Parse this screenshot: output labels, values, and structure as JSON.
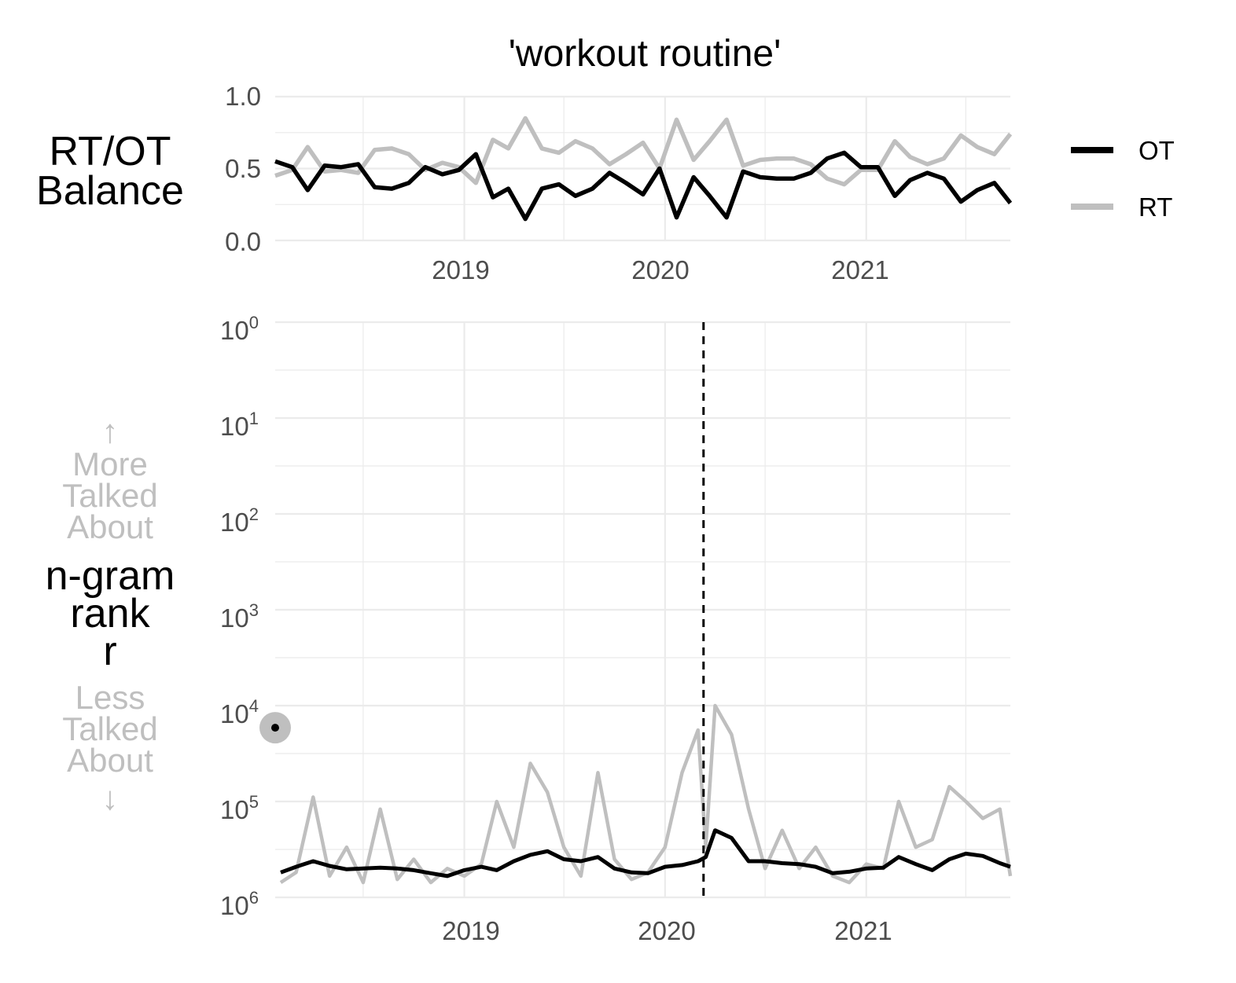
{
  "title": "'workout routine'",
  "balance_panel": {
    "ylabel_lines": [
      "RT/OT",
      "Balance"
    ],
    "yticks": [
      "0.0",
      "0.5",
      "1.0"
    ],
    "xticks": [
      "2019",
      "2020",
      "2021"
    ]
  },
  "rank_panel": {
    "ylabel_lines": [
      "n-gram",
      "rank",
      "r"
    ],
    "more_lines": [
      "↑",
      "More",
      "Talked",
      "About"
    ],
    "less_lines": [
      "Less",
      "Talked",
      "About",
      "↓"
    ],
    "yticks": [
      {
        "base": "10",
        "exp": "0"
      },
      {
        "base": "10",
        "exp": "1"
      },
      {
        "base": "10",
        "exp": "2"
      },
      {
        "base": "10",
        "exp": "3"
      },
      {
        "base": "10",
        "exp": "4"
      },
      {
        "base": "10",
        "exp": "5"
      },
      {
        "base": "10",
        "exp": "6"
      }
    ],
    "xticks": [
      "2019",
      "2020",
      "2021"
    ]
  },
  "legend": {
    "items": [
      {
        "label": "OT",
        "color": "#000000"
      },
      {
        "label": "RT",
        "color": "#bfbfbf"
      }
    ]
  },
  "chart_data": [
    {
      "type": "line",
      "title": "'workout routine'",
      "ylabel": "RT/OT Balance",
      "ylim": [
        0,
        1
      ],
      "xlim": [
        "2018-01-22",
        "2021-09-20"
      ],
      "x": [
        "2018-01-22",
        "2018-02-22",
        "2018-03-22",
        "2018-04-22",
        "2018-05-22",
        "2018-06-22",
        "2018-07-22",
        "2018-08-22",
        "2018-09-22",
        "2018-10-22",
        "2018-11-22",
        "2018-12-22",
        "2019-01-22",
        "2019-02-22",
        "2019-03-22",
        "2019-04-22",
        "2019-05-22",
        "2019-06-22",
        "2019-07-22",
        "2019-08-22",
        "2019-09-22",
        "2019-10-22",
        "2019-11-22",
        "2019-12-22",
        "2020-01-22",
        "2020-02-22",
        "2020-03-22",
        "2020-04-22",
        "2020-05-22",
        "2020-06-22",
        "2020-07-22",
        "2020-08-22",
        "2020-09-22",
        "2020-10-22",
        "2020-11-22",
        "2020-12-22",
        "2021-01-22",
        "2021-02-22",
        "2021-03-22",
        "2021-04-22",
        "2021-05-22",
        "2021-06-22",
        "2021-07-22",
        "2021-08-22",
        "2021-09-20"
      ],
      "series": [
        {
          "name": "OT",
          "color": "#000000",
          "values": [
            0.55,
            0.51,
            0.35,
            0.52,
            0.51,
            0.53,
            0.37,
            0.36,
            0.4,
            0.51,
            0.46,
            0.49,
            0.6,
            0.3,
            0.36,
            0.15,
            0.36,
            0.39,
            0.31,
            0.36,
            0.47,
            0.4,
            0.32,
            0.5,
            0.16,
            0.44,
            0.31,
            0.16,
            0.48,
            0.44,
            0.43,
            0.43,
            0.47,
            0.57,
            0.61,
            0.51,
            0.51,
            0.31,
            0.42,
            0.47,
            0.43,
            0.27,
            0.35,
            0.4,
            0.26
          ]
        },
        {
          "name": "RT",
          "color": "#bfbfbf",
          "values": [
            0.45,
            0.49,
            0.65,
            0.48,
            0.49,
            0.47,
            0.63,
            0.64,
            0.6,
            0.49,
            0.54,
            0.51,
            0.4,
            0.7,
            0.64,
            0.85,
            0.64,
            0.61,
            0.69,
            0.64,
            0.53,
            0.6,
            0.68,
            0.5,
            0.84,
            0.56,
            0.69,
            0.84,
            0.52,
            0.56,
            0.57,
            0.57,
            0.53,
            0.43,
            0.39,
            0.49,
            0.49,
            0.69,
            0.58,
            0.53,
            0.57,
            0.73,
            0.65,
            0.6,
            0.74
          ]
        }
      ]
    },
    {
      "type": "line",
      "ylabel": "n-gram rank r",
      "yscale": "log (inverted)",
      "ylim": [
        1,
        1000000
      ],
      "xlim": [
        "2018-01-22",
        "2021-09-20"
      ],
      "event_line": "2020-03-11",
      "point": {
        "x": "2018-01-22",
        "y": 17000
      },
      "x": [
        "2018-02-01",
        "2018-03-01",
        "2018-04-01",
        "2018-05-01",
        "2018-06-01",
        "2018-07-01",
        "2018-08-01",
        "2018-09-01",
        "2018-10-01",
        "2018-11-01",
        "2018-12-01",
        "2019-01-01",
        "2019-02-01",
        "2019-03-01",
        "2019-04-01",
        "2019-05-01",
        "2019-06-01",
        "2019-07-01",
        "2019-08-01",
        "2019-09-01",
        "2019-10-01",
        "2019-11-01",
        "2019-12-01",
        "2020-01-01",
        "2020-02-01",
        "2020-03-01",
        "2020-03-15",
        "2020-04-01",
        "2020-05-01",
        "2020-06-01",
        "2020-07-01",
        "2020-08-01",
        "2020-09-01",
        "2020-10-01",
        "2020-11-01",
        "2020-12-01",
        "2021-01-01",
        "2021-02-01",
        "2021-03-01",
        "2021-04-01",
        "2021-05-01",
        "2021-06-01",
        "2021-07-01",
        "2021-08-01",
        "2021-09-01",
        "2021-09-20"
      ],
      "series": [
        {
          "name": "OT",
          "color": "#000000",
          "values": [
            550000,
            480000,
            420000,
            470000,
            510000,
            500000,
            490000,
            500000,
            520000,
            560000,
            600000,
            520000,
            480000,
            520000,
            420000,
            360000,
            330000,
            400000,
            420000,
            380000,
            500000,
            550000,
            560000,
            480000,
            460000,
            420000,
            380000,
            200000,
            240000,
            420000,
            420000,
            440000,
            450000,
            480000,
            560000,
            540000,
            500000,
            490000,
            380000,
            450000,
            520000,
            400000,
            350000,
            370000,
            440000,
            480000
          ]
        },
        {
          "name": "RT",
          "color": "#bfbfbf",
          "values": [
            700000,
            550000,
            90000,
            600000,
            300000,
            700000,
            120000,
            650000,
            400000,
            700000,
            500000,
            600000,
            450000,
            100000,
            300000,
            40000,
            80000,
            300000,
            600000,
            50000,
            400000,
            650000,
            550000,
            300000,
            50000,
            18000,
            300000,
            10000,
            20000,
            120000,
            500000,
            200000,
            500000,
            300000,
            600000,
            700000,
            450000,
            500000,
            100000,
            300000,
            250000,
            70000,
            100000,
            150000,
            120000,
            600000
          ]
        }
      ]
    }
  ]
}
